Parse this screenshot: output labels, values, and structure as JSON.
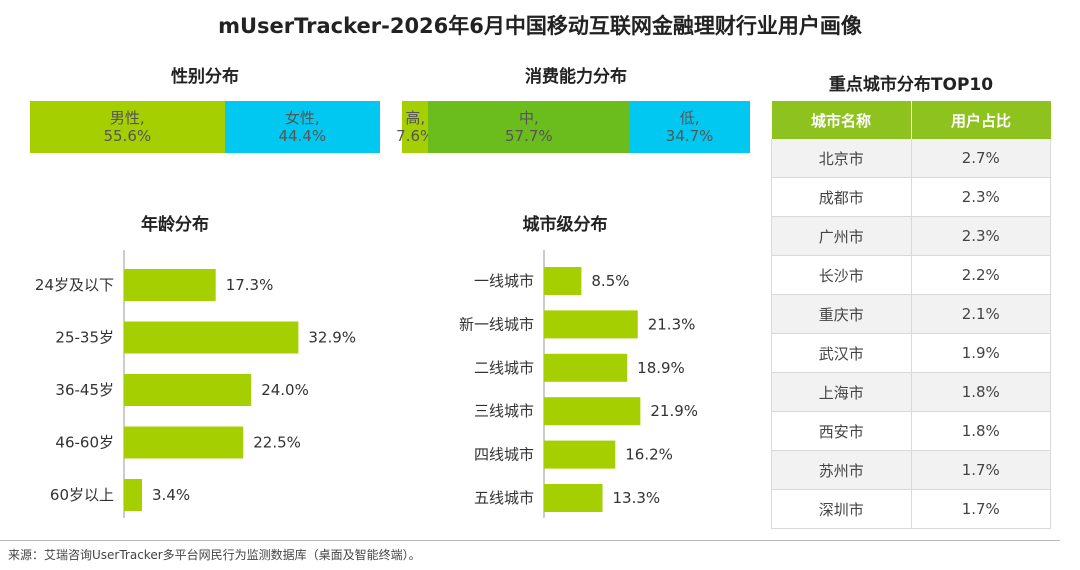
{
  "title": "mUserTracker-2026年6月中国移动互联网金融理财行业用户画像",
  "source": "来源：艾瑞咨询UserTracker多平台网民行为监测数据库（桌面及智能终端）。",
  "colors": {
    "green": "#a5cf00",
    "dark_green": "#6bbd1e",
    "cyan": "#00c8f0",
    "header_green": "#8ec21f"
  },
  "chart_data": [
    {
      "type": "bar",
      "orientation": "horizontal",
      "stacked": true,
      "title": "性别分布",
      "categories": [
        "男性,",
        "女性,"
      ],
      "values": [
        55.6,
        44.4
      ],
      "labels": [
        "55.6%",
        "44.4%"
      ],
      "colors": [
        "#a5cf00",
        "#00c8f0"
      ]
    },
    {
      "type": "bar",
      "orientation": "horizontal",
      "stacked": true,
      "title": "消费能力分布",
      "categories": [
        "高,",
        "中,",
        "低,"
      ],
      "values": [
        7.6,
        57.7,
        34.7
      ],
      "labels": [
        "7.6%",
        "57.7%",
        "34.7%"
      ],
      "colors": [
        "#a5cf00",
        "#6bbd1e",
        "#00c8f0"
      ]
    },
    {
      "type": "bar",
      "orientation": "horizontal",
      "title": "年龄分布",
      "categories": [
        "24岁及以下",
        "25-35岁",
        "36-45岁",
        "46-60岁",
        "60岁以上"
      ],
      "values": [
        17.3,
        32.9,
        24.0,
        22.5,
        3.4
      ],
      "labels": [
        "17.3%",
        "32.9%",
        "24.0%",
        "22.5%",
        "3.4%"
      ],
      "xlim": [
        0,
        40
      ]
    },
    {
      "type": "bar",
      "orientation": "horizontal",
      "title": "城市级分布",
      "categories": [
        "一线城市",
        "新一线城市",
        "二线城市",
        "三线城市",
        "四线城市",
        "五线城市"
      ],
      "values": [
        8.5,
        21.3,
        18.9,
        21.9,
        16.2,
        13.3
      ],
      "labels": [
        "8.5%",
        "21.3%",
        "18.9%",
        "21.9%",
        "16.2%",
        "13.3%"
      ],
      "xlim": [
        0,
        40
      ]
    },
    {
      "type": "table",
      "title": "重点城市分布TOP10",
      "columns": [
        "城市名称",
        "用户占比"
      ],
      "rows": [
        [
          "北京市",
          "2.7%"
        ],
        [
          "成都市",
          "2.3%"
        ],
        [
          "广州市",
          "2.3%"
        ],
        [
          "长沙市",
          "2.2%"
        ],
        [
          "重庆市",
          "2.1%"
        ],
        [
          "武汉市",
          "1.9%"
        ],
        [
          "上海市",
          "1.8%"
        ],
        [
          "西安市",
          "1.8%"
        ],
        [
          "苏州市",
          "1.7%"
        ],
        [
          "深圳市",
          "1.7%"
        ]
      ]
    }
  ]
}
